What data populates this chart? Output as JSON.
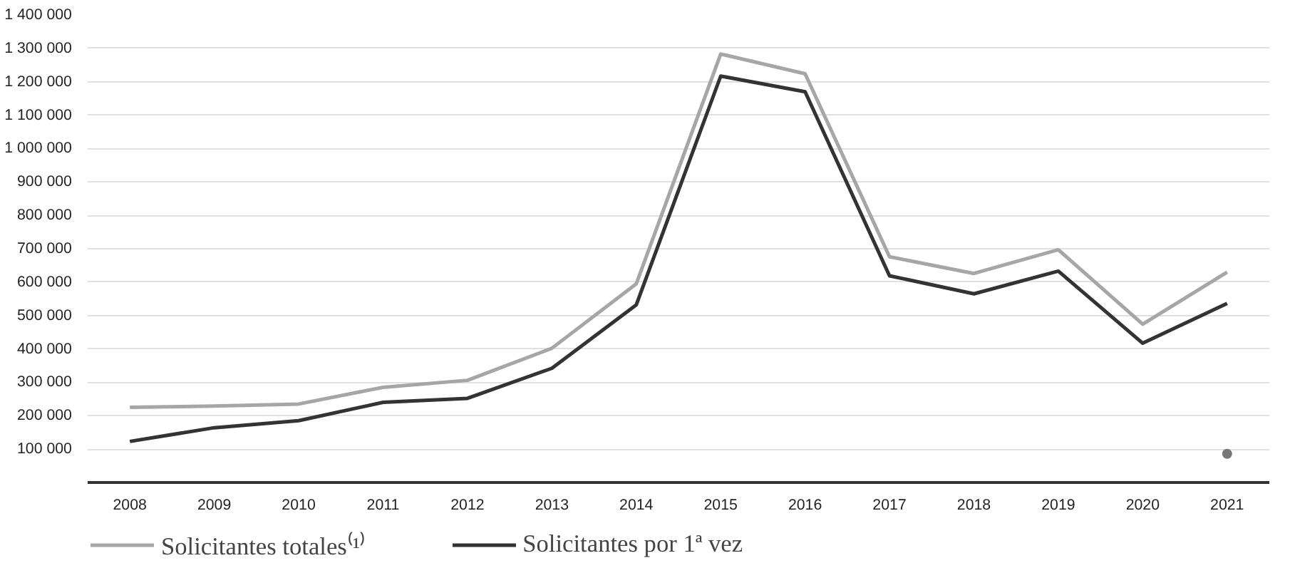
{
  "chart_data": {
    "type": "line",
    "categories": [
      "2008",
      "2009",
      "2010",
      "2011",
      "2012",
      "2013",
      "2014",
      "2015",
      "2016",
      "2017",
      "2018",
      "2019",
      "2020",
      "2021"
    ],
    "series": [
      {
        "name": "Solicitantes totales⁽¹⁾",
        "color": "#a6a6a6",
        "values": [
          225000,
          229000,
          235000,
          285000,
          306000,
          402000,
          595000,
          1283000,
          1224000,
          676000,
          626000,
          697000,
          474000,
          630000
        ]
      },
      {
        "name": "Solicitantes por 1ª vez",
        "color": "#333333",
        "values": [
          123000,
          164000,
          185000,
          240000,
          252000,
          342000,
          532000,
          1217000,
          1170000,
          619000,
          565000,
          633000,
          417000,
          536000
        ]
      },
      {
        "type": "scatter",
        "color": "#777777",
        "marker": "circle",
        "values": [
          null,
          null,
          null,
          null,
          null,
          null,
          null,
          null,
          null,
          null,
          null,
          null,
          null,
          86000
        ]
      }
    ],
    "ylim": [
      0,
      1400000
    ],
    "yticks": [
      {
        "value": 100000,
        "label": "100 000"
      },
      {
        "value": 200000,
        "label": "200 000"
      },
      {
        "value": 300000,
        "label": "300 000"
      },
      {
        "value": 400000,
        "label": "400 000"
      },
      {
        "value": 500000,
        "label": "500 000"
      },
      {
        "value": 600000,
        "label": "600 000"
      },
      {
        "value": 700000,
        "label": "700 000"
      },
      {
        "value": 800000,
        "label": "800 000"
      },
      {
        "value": 900000,
        "label": "900 000"
      },
      {
        "value": 1000000,
        "label": "1 000 000"
      },
      {
        "value": 1100000,
        "label": "1 100 000"
      },
      {
        "value": 1200000,
        "label": "1 200 000"
      },
      {
        "value": 1300000,
        "label": "1 300 000"
      },
      {
        "value": 1400000,
        "label": "1 400 000"
      }
    ],
    "grid": "y",
    "legend": "bottom left",
    "marker": "none",
    "line_style": "solid"
  }
}
